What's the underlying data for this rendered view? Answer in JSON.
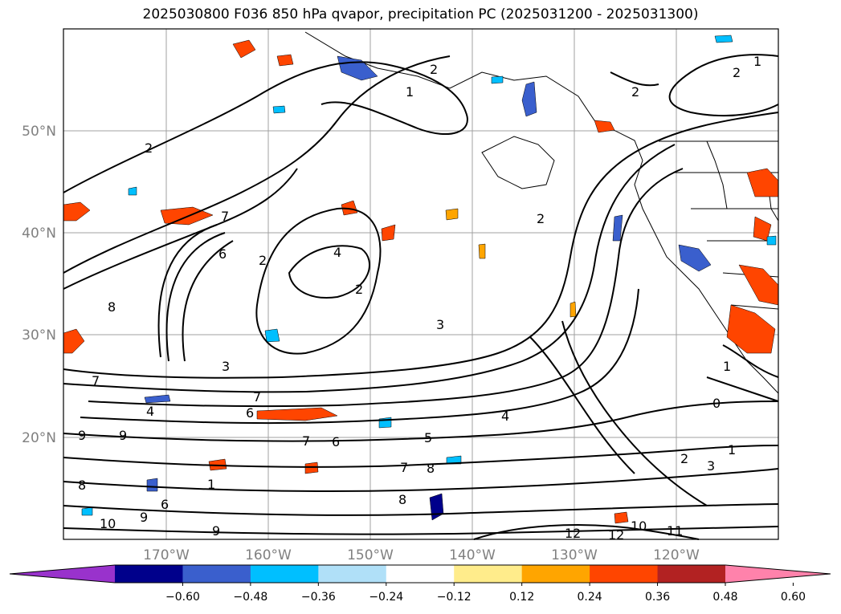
{
  "title": "2025030800 F036 850 hPa qvapor, precipitation PC (2025031200 - 2025031300)",
  "map": {
    "lat_labels": [
      "50°N",
      "40°N",
      "30°N",
      "20°N"
    ],
    "lon_labels": [
      "170°W",
      "160°W",
      "150°W",
      "140°W",
      "130°W",
      "120°W"
    ],
    "grid": true,
    "contour_labels": [
      "2",
      "1",
      "2",
      "1",
      "2",
      "2",
      "2",
      "7",
      "6",
      "2",
      "4",
      "2",
      "3",
      "3",
      "8",
      "9",
      "9",
      "8",
      "10",
      "9",
      "9",
      "6",
      "6",
      "5",
      "4",
      "7",
      "8",
      "7",
      "1",
      "2",
      "3",
      "0",
      "12",
      "12",
      "10",
      "11",
      "1",
      "6",
      "1",
      "8",
      "4",
      "7",
      "7"
    ]
  },
  "colorbar": {
    "tick_labels": [
      "−0.60",
      "−0.48",
      "−0.36",
      "−0.24",
      "−0.12",
      "0.12",
      "0.24",
      "0.36",
      "0.48",
      "0.60"
    ],
    "colors": [
      "#9932cc",
      "#00008b",
      "#3a5fcd",
      "#00bfff",
      "#b0e0f8",
      "#ffffff",
      "#ffec8b",
      "#ffa500",
      "#ff4500",
      "#b22222",
      "#ff82ab"
    ],
    "extend": "both"
  }
}
